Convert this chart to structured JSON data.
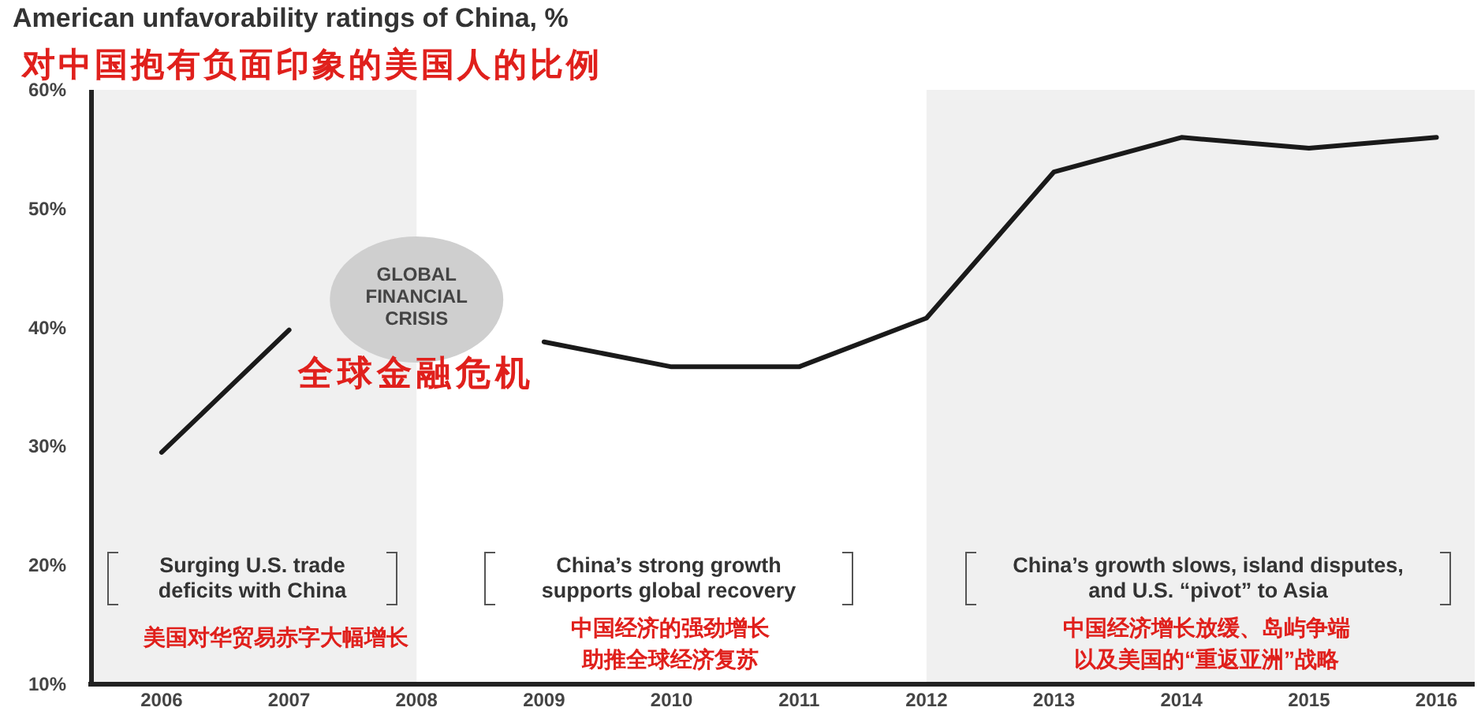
{
  "chart_data": {
    "type": "line",
    "title": "American unfavorability ratings of China, %",
    "subtitle": "对中国抱有负面印象的美国人的比例",
    "x": [
      2006,
      2007,
      2008,
      2009,
      2010,
      2011,
      2012,
      2013,
      2014,
      2015,
      2016
    ],
    "series": [
      {
        "color": "#1a1a1a",
        "values": [
          29.5,
          39.8,
          null,
          38.8,
          36.7,
          36.7,
          40.8,
          53.1,
          56,
          55.1,
          56
        ]
      }
    ],
    "xlim": [
      2005.45,
      2016.3
    ],
    "xticks": [
      2006,
      2007,
      2008,
      2009,
      2010,
      2011,
      2012,
      2013,
      2014,
      2015,
      2016
    ],
    "ylim": [
      10,
      60
    ],
    "yticks": [
      {
        "value": 10,
        "label": "10%"
      },
      {
        "value": 20,
        "label": "20%"
      },
      {
        "value": 30,
        "label": "30%"
      },
      {
        "value": 40,
        "label": "40%"
      },
      {
        "value": 50,
        "label": "50%"
      },
      {
        "value": 60,
        "label": "60%"
      }
    ],
    "bands": [
      {
        "axis": "x",
        "from": 2005.45,
        "to": 2008,
        "color": "#f0f0f0"
      },
      {
        "axis": "x",
        "from": 2012,
        "to": 2016.3,
        "color": "#f0f0f0"
      }
    ],
    "annotations": [
      "GLOBAL FINANCIAL CRISIS",
      "全球金融危机",
      "Surging U.S. trade deficits with China",
      "China’s strong growth supports global recovery",
      "China’s growth slows, island disputes, and U.S. “pivot” to Asia",
      "美国对华贸易赤字大幅增长",
      "中国经济的强劲增长助推全球经济复苏",
      "中国经济增长放缓、岛屿争端以及美国的“重返亚洲”战略"
    ],
    "grid": false,
    "marker": "none",
    "line_style": "solid"
  }
}
